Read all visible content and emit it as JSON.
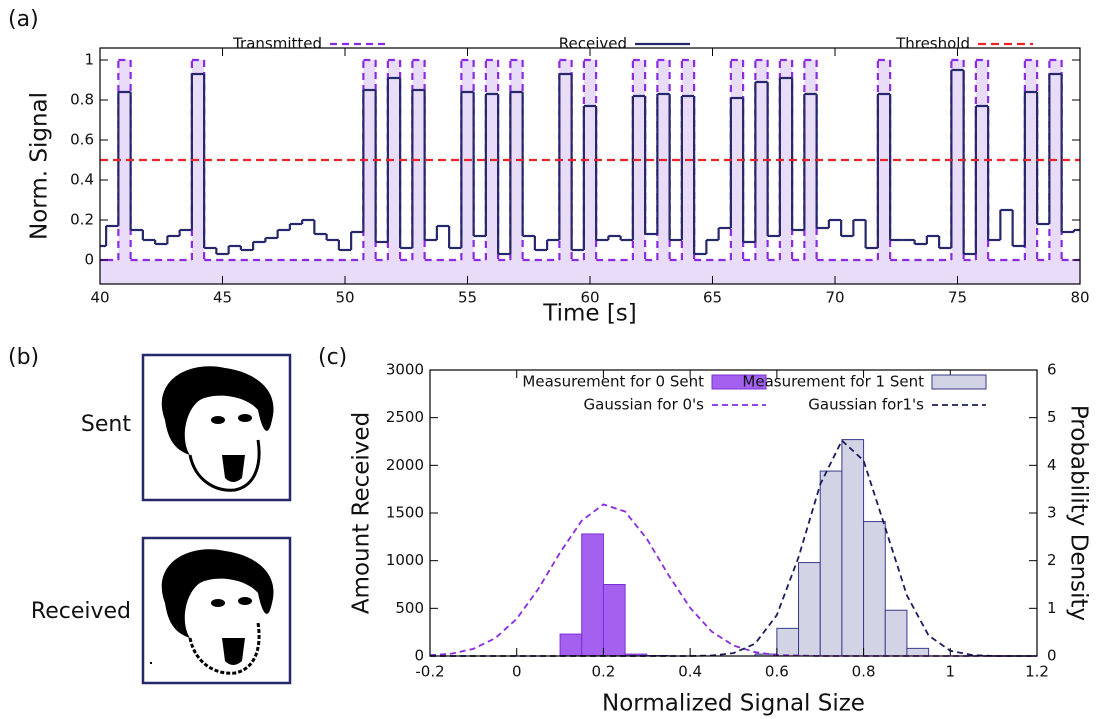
{
  "panel_labels": [
    "(a)",
    "(b)",
    "(c)"
  ],
  "panel_b": {
    "sent": "Sent",
    "received": "Received"
  },
  "chart_data": [
    {
      "type": "line",
      "xlabel": "Time [s]",
      "ylabel": "Norm. Signal",
      "xlim": [
        40,
        80
      ],
      "xticks": [
        40,
        45,
        50,
        55,
        60,
        65,
        70,
        75,
        80
      ],
      "ylim": [
        -0.12,
        1.06
      ],
      "yticks": [
        0,
        0.2,
        0.4,
        0.6,
        0.8,
        1
      ],
      "legend": "top",
      "x": [
        40,
        40.5,
        41,
        41.5,
        42,
        42.5,
        43,
        43.5,
        44,
        44.5,
        45,
        45.5,
        46,
        46.5,
        47,
        47.5,
        48,
        48.5,
        49,
        49.5,
        50,
        50.5,
        51,
        51.5,
        52,
        52.5,
        53,
        53.5,
        54,
        54.5,
        55,
        55.5,
        56,
        56.5,
        57,
        57.5,
        58,
        58.5,
        59,
        59.5,
        60,
        60.5,
        61,
        61.5,
        62,
        62.5,
        63,
        63.5,
        64,
        64.5,
        65,
        65.5,
        66,
        66.5,
        67,
        67.5,
        68,
        68.5,
        69,
        69.5,
        70,
        70.5,
        71,
        71.5,
        72,
        72.5,
        73,
        73.5,
        74,
        74.5,
        75,
        75.5,
        76,
        76.5,
        77,
        77.5,
        78,
        78.5,
        79,
        79.5,
        80
      ],
      "series": [
        {
          "name": "Transmitted",
          "color": "#8a2be2",
          "fill": "#e9dcf8",
          "values": [
            0,
            0,
            1,
            0,
            0,
            0,
            0,
            0,
            1,
            0,
            0,
            0,
            0,
            0,
            0,
            0,
            0,
            0,
            0,
            0,
            0,
            0,
            1,
            0,
            1,
            0,
            1,
            0,
            0,
            0,
            1,
            0,
            1,
            0,
            1,
            0,
            0,
            0,
            1,
            0,
            1,
            0,
            0,
            0,
            1,
            0,
            1,
            0,
            1,
            0,
            0,
            0,
            1,
            0,
            1,
            0,
            1,
            0,
            1,
            0,
            0,
            0,
            0,
            0,
            1,
            0,
            0,
            0,
            0,
            0,
            1,
            0,
            1,
            0,
            0,
            0,
            1,
            0,
            1,
            0,
            0
          ]
        },
        {
          "name": "Received",
          "color": "#27276b",
          "values": [
            0.07,
            0.17,
            0.84,
            0.15,
            0.1,
            0.08,
            0.12,
            0.15,
            0.93,
            0.06,
            0.03,
            0.07,
            0.05,
            0.09,
            0.11,
            0.15,
            0.18,
            0.2,
            0.13,
            0.1,
            0.05,
            0.14,
            0.85,
            0.09,
            0.91,
            0.06,
            0.85,
            0.1,
            0.17,
            0.06,
            0.84,
            0.12,
            0.83,
            0.03,
            0.84,
            0.12,
            0.05,
            0.1,
            0.93,
            0.05,
            0.77,
            0.1,
            0.12,
            0.1,
            0.82,
            0.13,
            0.83,
            0.1,
            0.82,
            0.03,
            0.1,
            0.16,
            0.81,
            0.09,
            0.89,
            0.12,
            0.91,
            0.15,
            0.83,
            0.16,
            0.2,
            0.12,
            0.2,
            0.06,
            0.83,
            0.1,
            0.1,
            0.08,
            0.12,
            0.06,
            0.95,
            0.03,
            0.77,
            0.1,
            0.25,
            0.07,
            0.84,
            0.18,
            0.93,
            0.14,
            0.15
          ]
        }
      ],
      "reference_line": {
        "name": "Threshold",
        "color": "#e8262a",
        "value": 0.5
      }
    },
    {
      "type": "histogram",
      "xlabel": "Normalized Signal Size",
      "ylabel": "Amount Received",
      "y2label": "Probability Density",
      "xlim": [
        -0.2,
        1.2
      ],
      "xticks": [
        -0.2,
        0,
        0.2,
        0.4,
        0.6,
        0.8,
        1,
        1.2
      ],
      "ylim": [
        0,
        3000
      ],
      "yticks": [
        0,
        500,
        1000,
        1500,
        2000,
        2500,
        3000
      ],
      "y2lim": [
        0,
        6
      ],
      "y2ticks": [
        0,
        1,
        2,
        3,
        4,
        5,
        6
      ],
      "bins": [
        0.1,
        0.15,
        0.2,
        0.25,
        0.3,
        0.35,
        0.4,
        0.45,
        0.5,
        0.55,
        0.6,
        0.65,
        0.7,
        0.75,
        0.8,
        0.85,
        0.9,
        0.95
      ],
      "series": [
        {
          "name": "Measurement for 0 Sent",
          "color": "#a461f0",
          "edge": "#7a2fd6",
          "values": [
            230,
            1280,
            750,
            20,
            5,
            0,
            0,
            0,
            0,
            0,
            0,
            0,
            0,
            0,
            0,
            0,
            0
          ]
        },
        {
          "name": "Measurement for 1 Sent",
          "color": "#d3d3e6",
          "edge": "#3a3a8c",
          "values": [
            0,
            0,
            0,
            0,
            0,
            0,
            0,
            0,
            0,
            20,
            290,
            980,
            1940,
            2270,
            1410,
            480,
            80
          ]
        }
      ],
      "curves_x": [
        -0.2,
        -0.15,
        -0.1,
        -0.05,
        0,
        0.05,
        0.1,
        0.15,
        0.2,
        0.25,
        0.3,
        0.35,
        0.4,
        0.45,
        0.5,
        0.55,
        0.6,
        0.65,
        0.7,
        0.75,
        0.8,
        0.85,
        0.9,
        0.95,
        1,
        1.05,
        1.1,
        1.15,
        1.2
      ],
      "curves": [
        {
          "name": "Gaussian for 0's",
          "color": "#8a2be2",
          "axis": "y2",
          "values": [
            0.015,
            0.05,
            0.15,
            0.37,
            0.78,
            1.41,
            2.17,
            2.84,
            3.18,
            3.03,
            2.46,
            1.7,
            1.01,
            0.51,
            0.22,
            0.08,
            0.02,
            0.01,
            0,
            0,
            0,
            0,
            0,
            0,
            0,
            0,
            0,
            0,
            0
          ]
        },
        {
          "name": "Gaussian for1's",
          "color": "#1c1c5e",
          "axis": "y2",
          "values": [
            0,
            0,
            0,
            0,
            0,
            0,
            0,
            0,
            0,
            0,
            0,
            0,
            0,
            0.01,
            0.06,
            0.26,
            0.86,
            2.07,
            3.6,
            4.52,
            4.1,
            2.69,
            1.27,
            0.43,
            0.11,
            0.02,
            0,
            0,
            0
          ]
        }
      ]
    }
  ]
}
